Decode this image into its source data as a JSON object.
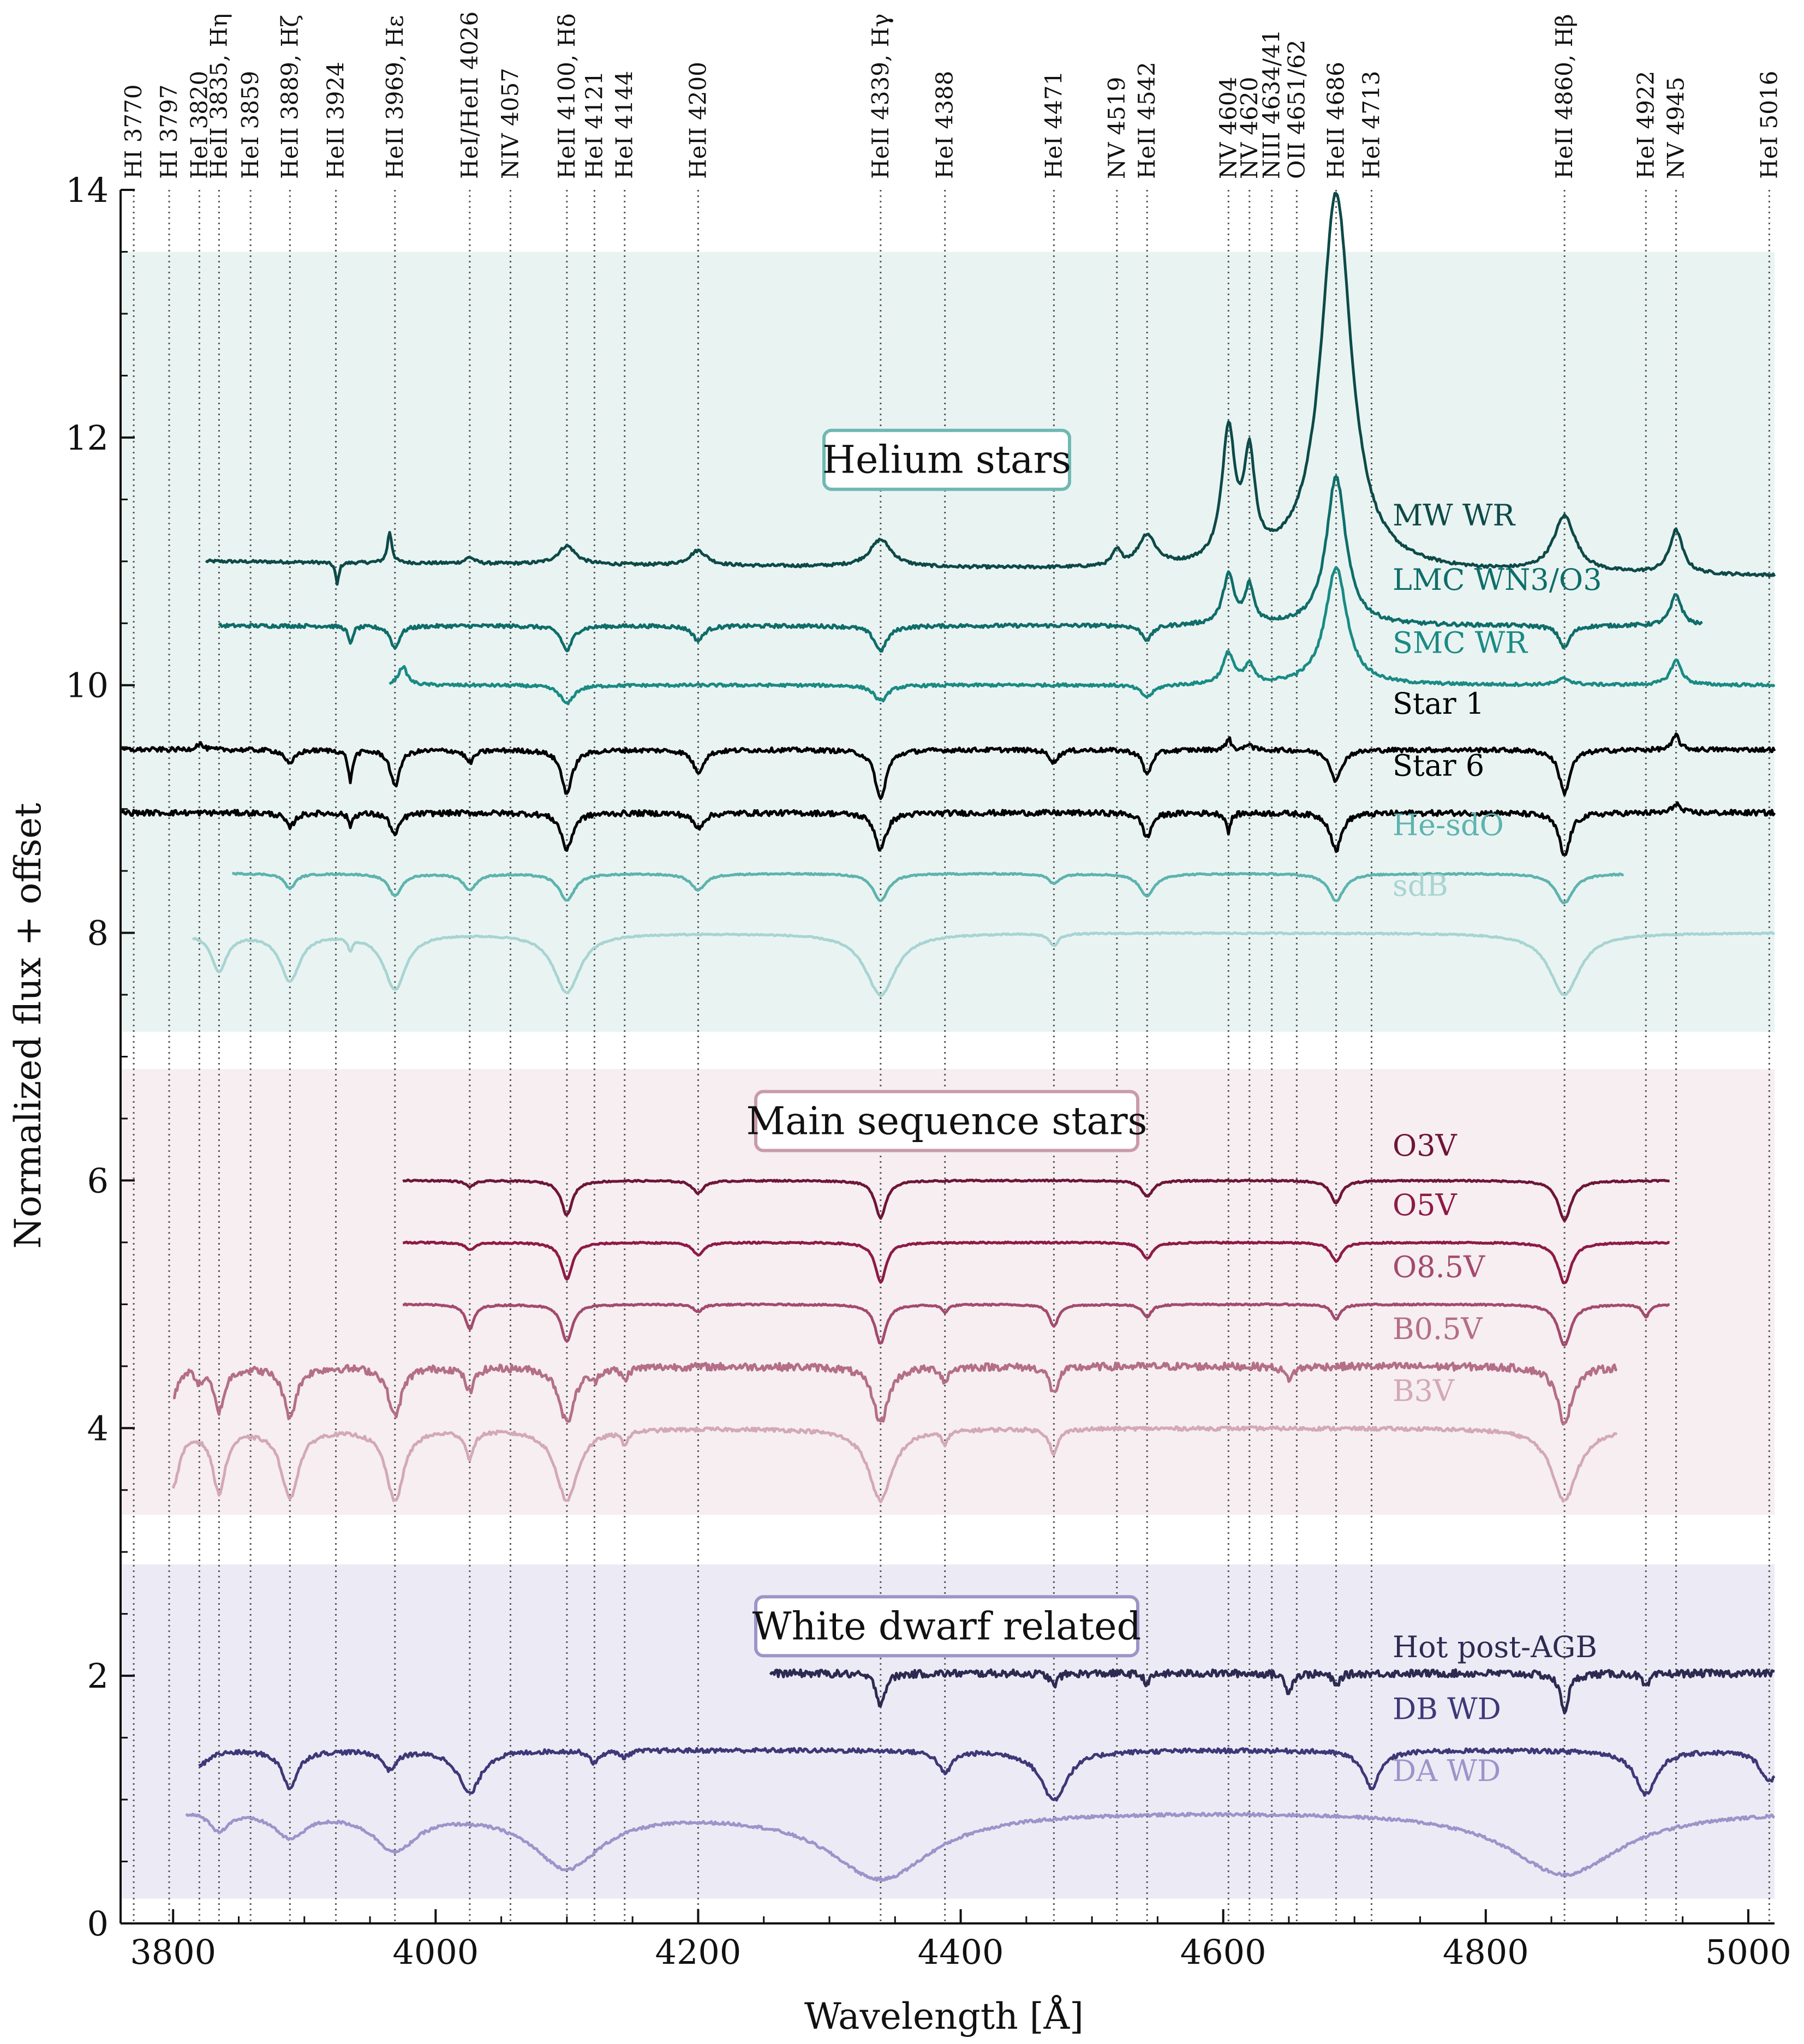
{
  "chart_data": {
    "type": "line",
    "xlabel": "Wavelength [Å]",
    "ylabel": "Normalized flux + offset",
    "xlim": [
      3760,
      5020
    ],
    "ylim": [
      0,
      14
    ],
    "xticks": [
      "3800",
      "4000",
      "4200",
      "4400",
      "4600",
      "4800",
      "5000"
    ],
    "yticks": [
      "0",
      "2",
      "4",
      "6",
      "8",
      "10",
      "12",
      "14"
    ],
    "grid": false,
    "legend": "none (labels placed next to each series)",
    "groups": [
      {
        "title": "Helium stars",
        "y_range": [
          7.2,
          13.5
        ],
        "color": "#e9f4f2",
        "border": "#6fb8b4"
      },
      {
        "title": "Main sequence stars",
        "y_range": [
          3.3,
          6.9
        ],
        "color": "#f6eef0",
        "border": "#c99bab"
      },
      {
        "title": "White dwarf related",
        "y_range": [
          0.2,
          2.9
        ],
        "color": "#ecebf5",
        "border": "#9e94c8"
      }
    ],
    "lines": [
      {
        "label": "HI 3770",
        "x": 3770
      },
      {
        "label": "HI 3797",
        "x": 3797
      },
      {
        "label": "HeI 3820",
        "x": 3820
      },
      {
        "label": "HeII 3835, Hη",
        "x": 3835
      },
      {
        "label": "HeI 3859",
        "x": 3859
      },
      {
        "label": "HeII 3889, Hζ",
        "x": 3889
      },
      {
        "label": "HeII 3924",
        "x": 3924
      },
      {
        "label": "HeII 3969, Hε",
        "x": 3969
      },
      {
        "label": "HeI/HeII 4026",
        "x": 4026
      },
      {
        "label": "NIV 4057",
        "x": 4057
      },
      {
        "label": "HeII 4100, Hδ",
        "x": 4100
      },
      {
        "label": "HeI 4121",
        "x": 4121
      },
      {
        "label": "HeI 4144",
        "x": 4144
      },
      {
        "label": "HeII 4200",
        "x": 4200
      },
      {
        "label": "HeII 4339, Hγ",
        "x": 4339
      },
      {
        "label": "HeI 4388",
        "x": 4388
      },
      {
        "label": "HeI 4471",
        "x": 4471
      },
      {
        "label": "NV 4519",
        "x": 4519
      },
      {
        "label": "HeII 4542",
        "x": 4542
      },
      {
        "label": "NV 4604",
        "x": 4604
      },
      {
        "label": "NV 4620",
        "x": 4620
      },
      {
        "label": "NIII 4634/41",
        "x": 4637
      },
      {
        "label": "OII 4651/62",
        "x": 4656
      },
      {
        "label": "HeII 4686",
        "x": 4686
      },
      {
        "label": "HeI 4713",
        "x": 4713
      },
      {
        "label": "HeII 4860, Hβ",
        "x": 4860
      },
      {
        "label": "HeI 4922",
        "x": 4922
      },
      {
        "label": "NV 4945",
        "x": 4945
      },
      {
        "label": "HeI 5016",
        "x": 5016
      }
    ],
    "series": [
      {
        "name": "MW WR",
        "color": "#0d4a48",
        "x_range": [
          3825,
          5020
        ],
        "base": 11.0,
        "slope": -0.1,
        "noise": 0.012,
        "features": [
          [
            3925,
            -0.18,
            1.5
          ],
          [
            3965,
            0.25,
            2
          ],
          [
            4026,
            0.05,
            4
          ],
          [
            4100,
            0.15,
            8
          ],
          [
            4200,
            0.12,
            8
          ],
          [
            4339,
            0.22,
            10
          ],
          [
            4519,
            0.12,
            4
          ],
          [
            4542,
            0.25,
            8
          ],
          [
            4604,
            1.05,
            6
          ],
          [
            4620,
            0.8,
            5
          ],
          [
            4686,
            3.05,
            14
          ],
          [
            4860,
            0.45,
            10
          ],
          [
            4945,
            0.35,
            6
          ]
        ]
      },
      {
        "name": "LMC WN3/O3",
        "color": "#0f6d6a",
        "x_range": [
          3835,
          4965
        ],
        "base": 10.48,
        "slope": 0,
        "noise": 0.015,
        "features": [
          [
            3935,
            -0.15,
            2
          ],
          [
            3969,
            -0.18,
            4
          ],
          [
            4100,
            -0.2,
            5
          ],
          [
            4200,
            -0.12,
            5
          ],
          [
            4339,
            -0.2,
            6
          ],
          [
            4542,
            -0.12,
            5
          ],
          [
            4604,
            0.4,
            5
          ],
          [
            4620,
            0.3,
            4
          ],
          [
            4686,
            1.2,
            9
          ],
          [
            4860,
            -0.18,
            5
          ],
          [
            4945,
            0.25,
            5
          ]
        ]
      },
      {
        "name": "SMC WR",
        "color": "#1a8a84",
        "x_range": [
          3965,
          5020
        ],
        "base": 10.0,
        "slope": 0,
        "noise": 0.012,
        "features": [
          [
            3975,
            0.15,
            4
          ],
          [
            4100,
            -0.15,
            6
          ],
          [
            4339,
            -0.13,
            6
          ],
          [
            4542,
            -0.1,
            6
          ],
          [
            4604,
            0.25,
            5
          ],
          [
            4620,
            0.15,
            4
          ],
          [
            4686,
            0.95,
            10
          ],
          [
            4860,
            0.05,
            6
          ],
          [
            4945,
            0.2,
            5
          ]
        ]
      },
      {
        "name": "Star 1",
        "color": "#000000",
        "x_range": [
          3760,
          5020
        ],
        "base": 9.48,
        "slope": 0,
        "noise": 0.018,
        "features": [
          [
            3820,
            0.05,
            3
          ],
          [
            3889,
            -0.12,
            4
          ],
          [
            3935,
            -0.25,
            2
          ],
          [
            3969,
            -0.3,
            4
          ],
          [
            4026,
            -0.1,
            4
          ],
          [
            4100,
            -0.35,
            5
          ],
          [
            4200,
            -0.18,
            5
          ],
          [
            4339,
            -0.4,
            5
          ],
          [
            4471,
            -0.1,
            4
          ],
          [
            4542,
            -0.2,
            4
          ],
          [
            4604,
            0.1,
            2
          ],
          [
            4620,
            0.06,
            2
          ],
          [
            4686,
            -0.25,
            5
          ],
          [
            4860,
            -0.35,
            5
          ],
          [
            4945,
            0.12,
            3
          ]
        ]
      },
      {
        "name": "Star 6",
        "color": "#000000",
        "x_range": [
          3760,
          5020
        ],
        "base": 8.97,
        "slope": 0,
        "noise": 0.022,
        "features": [
          [
            3889,
            -0.12,
            4
          ],
          [
            3935,
            -0.1,
            2
          ],
          [
            3969,
            -0.18,
            4
          ],
          [
            4100,
            -0.3,
            5
          ],
          [
            4200,
            -0.12,
            5
          ],
          [
            4339,
            -0.3,
            5
          ],
          [
            4542,
            -0.2,
            4
          ],
          [
            4604,
            -0.15,
            2
          ],
          [
            4686,
            -0.3,
            5
          ],
          [
            4860,
            -0.35,
            5
          ],
          [
            4945,
            0.08,
            3
          ]
        ]
      },
      {
        "name": "He-sdO",
        "color": "#5eb3ae",
        "x_range": [
          3845,
          4905
        ],
        "base": 8.48,
        "slope": 0,
        "noise": 0.006,
        "features": [
          [
            3889,
            -0.12,
            5
          ],
          [
            3969,
            -0.18,
            6
          ],
          [
            4026,
            -0.13,
            6
          ],
          [
            4100,
            -0.22,
            7
          ],
          [
            4200,
            -0.13,
            7
          ],
          [
            4339,
            -0.22,
            7
          ],
          [
            4471,
            -0.08,
            5
          ],
          [
            4542,
            -0.18,
            7
          ],
          [
            4686,
            -0.22,
            7
          ],
          [
            4860,
            -0.24,
            8
          ]
        ]
      },
      {
        "name": "sdB",
        "color": "#a8d4d2",
        "x_range": [
          3815,
          5020
        ],
        "base": 8.0,
        "slope": 0,
        "noise": 0.006,
        "features": [
          [
            3835,
            -0.3,
            7
          ],
          [
            3889,
            -0.38,
            9
          ],
          [
            3935,
            -0.1,
            2
          ],
          [
            3969,
            -0.45,
            10
          ],
          [
            4100,
            -0.48,
            12
          ],
          [
            4339,
            -0.5,
            14
          ],
          [
            4471,
            -0.1,
            4
          ],
          [
            4860,
            -0.5,
            14
          ]
        ]
      },
      {
        "name": "O3V",
        "color": "#6e1538",
        "x_range": [
          3975,
          4940
        ],
        "base": 6.0,
        "slope": 0,
        "noise": 0.006,
        "features": [
          [
            4026,
            -0.05,
            4
          ],
          [
            4100,
            -0.28,
            5
          ],
          [
            4200,
            -0.1,
            5
          ],
          [
            4339,
            -0.3,
            5
          ],
          [
            4542,
            -0.13,
            5
          ],
          [
            4686,
            -0.18,
            5
          ],
          [
            4860,
            -0.32,
            6
          ]
        ]
      },
      {
        "name": "O5V",
        "color": "#8e1a46",
        "x_range": [
          3975,
          4940
        ],
        "base": 5.5,
        "slope": 0,
        "noise": 0.006,
        "features": [
          [
            4026,
            -0.06,
            4
          ],
          [
            4100,
            -0.3,
            5
          ],
          [
            4200,
            -0.1,
            5
          ],
          [
            4339,
            -0.32,
            5
          ],
          [
            4542,
            -0.13,
            5
          ],
          [
            4686,
            -0.15,
            5
          ],
          [
            4860,
            -0.33,
            6
          ]
        ]
      },
      {
        "name": "O8.5V",
        "color": "#a34a6e",
        "x_range": [
          3975,
          4940
        ],
        "base": 5.0,
        "slope": 0,
        "noise": 0.006,
        "features": [
          [
            4026,
            -0.2,
            4
          ],
          [
            4100,
            -0.3,
            5
          ],
          [
            4200,
            -0.06,
            4
          ],
          [
            4339,
            -0.32,
            5
          ],
          [
            4388,
            -0.06,
            3
          ],
          [
            4471,
            -0.18,
            4
          ],
          [
            4542,
            -0.1,
            4
          ],
          [
            4686,
            -0.12,
            4
          ],
          [
            4860,
            -0.33,
            6
          ],
          [
            4922,
            -0.1,
            3
          ]
        ]
      },
      {
        "name": "B0.5V",
        "color": "#b46e88",
        "x_range": [
          3800,
          4900
        ],
        "base": 4.5,
        "slope": 0,
        "noise": 0.03,
        "features": [
          [
            3800,
            -0.25,
            4
          ],
          [
            3820,
            -0.1,
            3
          ],
          [
            3835,
            -0.35,
            5
          ],
          [
            3889,
            -0.4,
            6
          ],
          [
            3969,
            -0.4,
            6
          ],
          [
            4026,
            -0.2,
            4
          ],
          [
            4100,
            -0.45,
            7
          ],
          [
            4121,
            -0.08,
            3
          ],
          [
            4144,
            -0.1,
            3
          ],
          [
            4339,
            -0.45,
            7
          ],
          [
            4388,
            -0.12,
            3
          ],
          [
            4471,
            -0.22,
            4
          ],
          [
            4650,
            -0.1,
            4
          ],
          [
            4860,
            -0.45,
            7
          ]
        ]
      },
      {
        "name": "B3V",
        "color": "#d3a8b8",
        "x_range": [
          3800,
          4900
        ],
        "base": 4.0,
        "slope": 0,
        "noise": 0.015,
        "features": [
          [
            3800,
            -0.45,
            6
          ],
          [
            3835,
            -0.5,
            6
          ],
          [
            3889,
            -0.55,
            8
          ],
          [
            3969,
            -0.58,
            8
          ],
          [
            4026,
            -0.22,
            4
          ],
          [
            4100,
            -0.58,
            10
          ],
          [
            4144,
            -0.1,
            3
          ],
          [
            4339,
            -0.58,
            11
          ],
          [
            4388,
            -0.1,
            3
          ],
          [
            4471,
            -0.2,
            4
          ],
          [
            4860,
            -0.58,
            12
          ]
        ]
      },
      {
        "name": "Hot post-AGB",
        "color": "#2d2a52",
        "x_range": [
          4255,
          5020
        ],
        "base": 2.02,
        "slope": 0,
        "noise": 0.03,
        "features": [
          [
            4339,
            -0.25,
            4
          ],
          [
            4471,
            -0.1,
            3
          ],
          [
            4542,
            -0.08,
            3
          ],
          [
            4650,
            -0.15,
            3
          ],
          [
            4686,
            -0.1,
            3
          ],
          [
            4860,
            -0.3,
            4
          ],
          [
            4922,
            -0.12,
            3
          ]
        ]
      },
      {
        "name": "DB WD",
        "color": "#3e3878",
        "x_range": [
          3820,
          5020
        ],
        "base": 1.4,
        "slope": 0,
        "noise": 0.018,
        "features": [
          [
            3820,
            -0.12,
            8
          ],
          [
            3889,
            -0.3,
            7
          ],
          [
            3965,
            -0.15,
            6
          ],
          [
            4026,
            -0.35,
            10
          ],
          [
            4121,
            -0.1,
            4
          ],
          [
            4144,
            -0.05,
            4
          ],
          [
            4388,
            -0.18,
            6
          ],
          [
            4471,
            -0.4,
            12
          ],
          [
            4713,
            -0.3,
            8
          ],
          [
            4922,
            -0.35,
            10
          ],
          [
            5016,
            -0.25,
            8
          ]
        ]
      },
      {
        "name": "DA WD",
        "color": "#9c94ca",
        "x_range": [
          3810,
          5020
        ],
        "base": 0.92,
        "slope": 0,
        "noise": 0.012,
        "features": [
          [
            3835,
            -0.15,
            8
          ],
          [
            3889,
            -0.2,
            14
          ],
          [
            3969,
            -0.3,
            20
          ],
          [
            4100,
            -0.45,
            32
          ],
          [
            4339,
            -0.55,
            48
          ],
          [
            4860,
            -0.52,
            52
          ]
        ]
      }
    ]
  }
}
